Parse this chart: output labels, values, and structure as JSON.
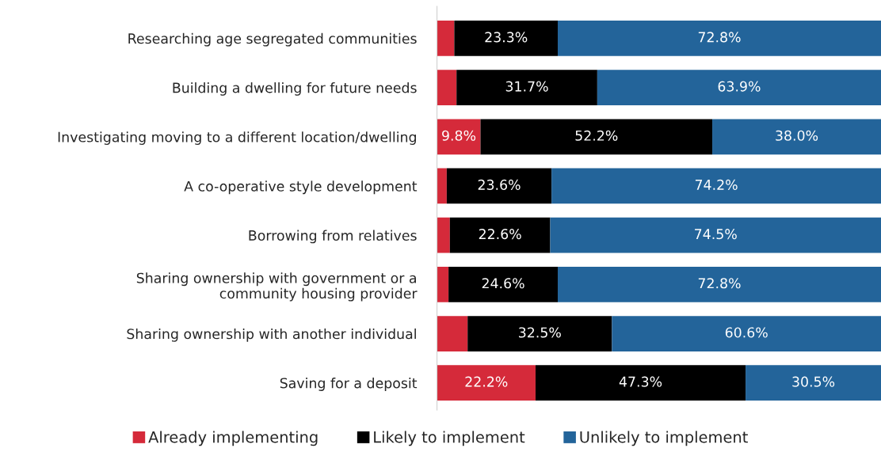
{
  "chart_data": {
    "type": "bar",
    "orientation": "horizontal",
    "stacked": true,
    "legend": "bottom",
    "grid": false,
    "categories": [
      "Researching age segregated communities",
      "Building a dwelling for future needs",
      "Investigating moving to a different location/dwelling",
      "A co-operative style development",
      "Borrowing from relatives",
      "Sharing ownership with government or a\ncommunity housing provider",
      "Sharing ownership with another individual",
      "Saving for a deposit"
    ],
    "series": [
      {
        "name": "Already implementing",
        "color": "#d52a3a",
        "values": [
          3.9,
          4.4,
          9.8,
          2.2,
          2.9,
          2.6,
          6.9,
          22.2
        ],
        "value_labels": [
          null,
          null,
          "9.8%",
          null,
          null,
          null,
          null,
          "22.2%"
        ]
      },
      {
        "name": "Likely to implement",
        "color": "#000000",
        "values": [
          23.3,
          31.7,
          52.2,
          23.6,
          22.6,
          24.6,
          32.5,
          47.3
        ],
        "value_labels": [
          "23.3%",
          "31.7%",
          "52.2%",
          "23.6%",
          "22.6%",
          "24.6%",
          "32.5%",
          "47.3%"
        ]
      },
      {
        "name": "Unlikely to implement",
        "color": "#23649a",
        "values": [
          72.8,
          63.9,
          38.0,
          74.2,
          74.5,
          72.8,
          60.6,
          30.5
        ],
        "value_labels": [
          "72.8%",
          "63.9%",
          "38.0%",
          "74.2%",
          "74.5%",
          "72.8%",
          "60.6%",
          "30.5%"
        ]
      }
    ]
  }
}
